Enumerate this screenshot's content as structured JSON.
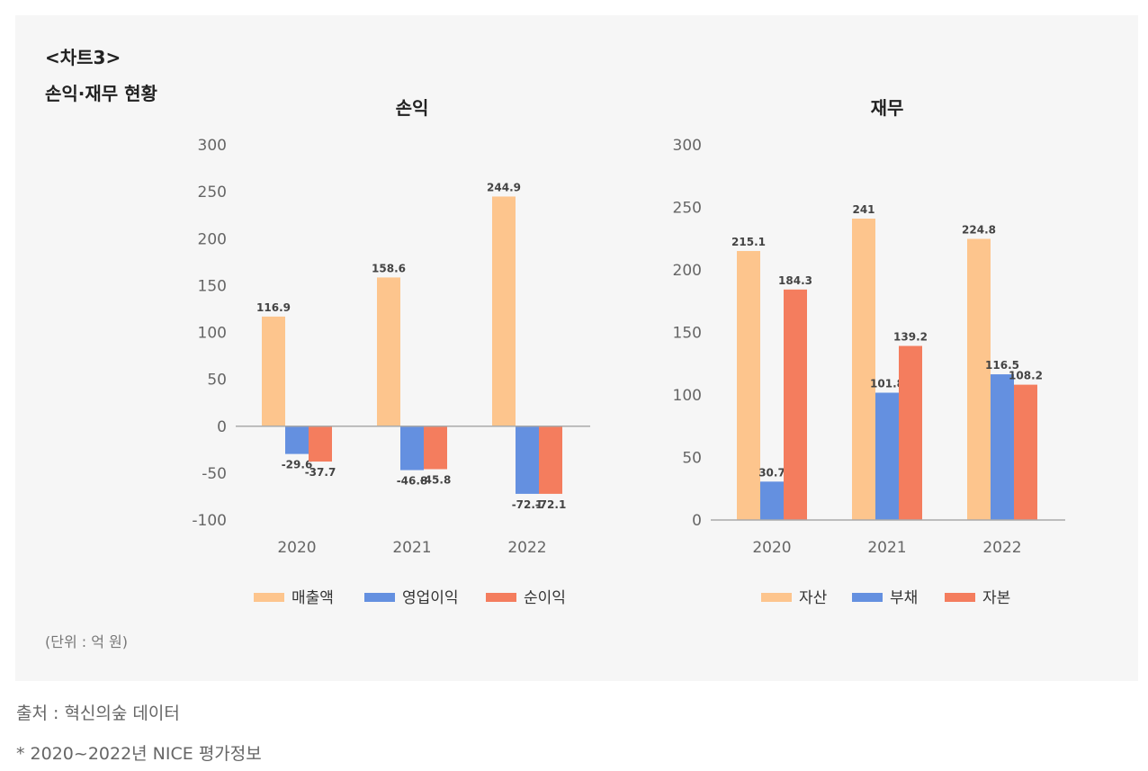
{
  "header": {
    "label": "<차트3>",
    "title": "손익·재무 현황"
  },
  "unit_note": "(단위 : 억 원)",
  "source_note": "출처 : 혁신의숲 데이터",
  "footnote": "* 2020~2022년 NICE 평가정보",
  "colors": {
    "series1": "#fdc58d",
    "series2": "#6490e0",
    "series3": "#f47d5e",
    "axis": "#aaaaaa"
  },
  "chart_data": [
    {
      "type": "bar",
      "title": "손익",
      "categories": [
        "2020",
        "2021",
        "2022"
      ],
      "series": [
        {
          "name": "매출액",
          "values": [
            116.9,
            158.6,
            244.9
          ]
        },
        {
          "name": "영업이익",
          "values": [
            -29.6,
            -46.8,
            -72.1
          ]
        },
        {
          "name": "순이익",
          "values": [
            -37.7,
            -45.8,
            -72.1
          ]
        }
      ],
      "ylim": [
        -100,
        300
      ],
      "yticks": [
        300,
        250,
        200,
        150,
        100,
        50,
        0,
        -50,
        -100
      ],
      "xlabel": "",
      "ylabel": "",
      "legend": "bottom"
    },
    {
      "type": "bar",
      "title": "재무",
      "categories": [
        "2020",
        "2021",
        "2022"
      ],
      "series": [
        {
          "name": "자산",
          "values": [
            215.1,
            241,
            224.8
          ]
        },
        {
          "name": "부채",
          "values": [
            30.7,
            101.8,
            116.5
          ]
        },
        {
          "name": "자본",
          "values": [
            184.3,
            139.2,
            108.2
          ]
        }
      ],
      "ylim": [
        0,
        300
      ],
      "yticks": [
        300,
        250,
        200,
        150,
        100,
        50,
        0
      ],
      "xlabel": "",
      "ylabel": "",
      "legend": "bottom"
    }
  ]
}
